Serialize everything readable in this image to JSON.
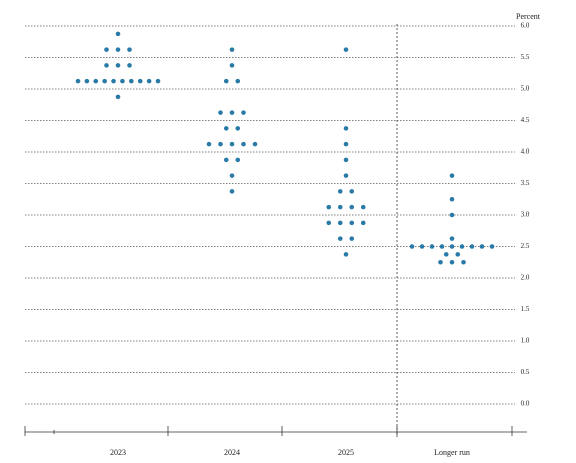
{
  "chart_data": {
    "type": "dot",
    "y_label": "Percent",
    "categories": [
      "2023",
      "2024",
      "2025",
      "Longer run"
    ],
    "color": "#2a7aa7",
    "values": [
      [
        5.875,
        5.625,
        5.625,
        5.625,
        5.375,
        5.375,
        5.375,
        5.125,
        5.125,
        5.125,
        5.125,
        5.125,
        5.125,
        5.125,
        5.125,
        5.125,
        5.125,
        4.875
      ],
      [
        5.625,
        5.375,
        5.125,
        5.125,
        4.625,
        4.625,
        4.625,
        4.375,
        4.375,
        4.125,
        4.125,
        4.125,
        4.125,
        4.125,
        3.875,
        3.875,
        3.625,
        3.375
      ],
      [
        5.625,
        4.375,
        4.125,
        3.875,
        3.625,
        3.375,
        3.375,
        3.125,
        3.125,
        3.125,
        3.125,
        2.875,
        2.875,
        2.875,
        2.875,
        2.625,
        2.625,
        2.375
      ],
      [
        3.625,
        3.25,
        3.0,
        2.625,
        2.5,
        2.5,
        2.5,
        2.5,
        2.5,
        2.5,
        2.5,
        2.5,
        2.5,
        2.375,
        2.375,
        2.25,
        2.25,
        2.25
      ]
    ],
    "ylim": [
      0,
      6
    ],
    "yticks": [
      {
        "value": 0,
        "label": "0.0"
      },
      0.5,
      {
        "value": 1,
        "label": "1.0"
      },
      1.5,
      {
        "value": 2,
        "label": "2.0"
      },
      2.5,
      {
        "value": 3,
        "label": "3.0"
      },
      3.5,
      {
        "value": 4,
        "label": "4.0"
      },
      4.5,
      {
        "value": 5,
        "label": "5.0"
      },
      5.5,
      {
        "value": 6,
        "label": "6.0"
      }
    ],
    "grid": true
  }
}
